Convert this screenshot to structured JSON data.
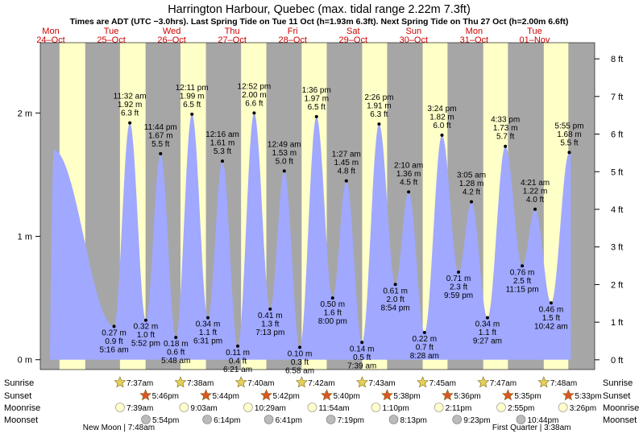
{
  "colors": {
    "night": "#a6a6a6",
    "day": "#ffffc8",
    "tide_fill": "#a0a8ff",
    "header_red": "#cc0000",
    "sun_star": "#e6d056",
    "sunset_star": "#dd5522",
    "moonrise": "#ffffcc",
    "moonset": "#bbbbbb"
  },
  "chart_data": {
    "type": "area",
    "title": "Harrington Harbour, Quebec (max. tidal range 2.22m 7.3ft)",
    "subtitle": "Times are ADT (UTC −3.0hrs). Last Spring Tide on Tue 11 Oct (h=1.93m 6.3ft). Next Spring Tide on Thu 27 Oct (h=2.00m 6.6ft)",
    "x_unit": "hours from 00:00 Mon 24 Oct (ADT)",
    "x_range": [
      0,
      220
    ],
    "ylim_m": [
      -0.08,
      2.57
    ],
    "ylim_ft": [
      -0.26,
      8.43
    ],
    "y_left_ticks": [
      {
        "v": 0,
        "label": "0 m"
      },
      {
        "v": 1,
        "label": "1 m"
      },
      {
        "v": 2,
        "label": "2 m"
      }
    ],
    "y_right_ticks": [
      {
        "v": 0,
        "label": "0 ft"
      },
      {
        "v": 1,
        "label": "1 ft"
      },
      {
        "v": 2,
        "label": "2 ft"
      },
      {
        "v": 3,
        "label": "3 ft"
      },
      {
        "v": 4,
        "label": "4 ft"
      },
      {
        "v": 5,
        "label": "5 ft"
      },
      {
        "v": 6,
        "label": "6 ft"
      },
      {
        "v": 7,
        "label": "7 ft"
      },
      {
        "v": 8,
        "label": "8 ft"
      }
    ],
    "days": [
      {
        "dow": "Mon",
        "date": "24–Oct",
        "t": 0
      },
      {
        "dow": "Tue",
        "date": "25–Oct",
        "t": 24
      },
      {
        "dow": "Wed",
        "date": "26–Oct",
        "t": 48
      },
      {
        "dow": "Thu",
        "date": "27–Oct",
        "t": 72
      },
      {
        "dow": "Fri",
        "date": "28–Oct",
        "t": 96
      },
      {
        "dow": "Sat",
        "date": "29–Oct",
        "t": 120
      },
      {
        "dow": "Sun",
        "date": "30–Oct",
        "t": 144
      },
      {
        "dow": "Mon",
        "date": "31–Oct",
        "t": 168
      },
      {
        "dow": "Tue",
        "date": "01–Nov",
        "t": 192
      }
    ],
    "daylight": [
      {
        "rise": 7.62,
        "set": 17.83
      },
      {
        "rise": 31.62,
        "set": 41.77
      },
      {
        "rise": 55.63,
        "set": 65.73
      },
      {
        "rise": 79.67,
        "set": 89.7
      },
      {
        "rise": 103.7,
        "set": 113.67
      },
      {
        "rise": 127.72,
        "set": 137.63
      },
      {
        "rise": 151.75,
        "set": 161.6
      },
      {
        "rise": 175.78,
        "set": 185.58
      },
      {
        "rise": 199.8,
        "set": 209.55
      }
    ],
    "leading_peak": {
      "t": 5.4,
      "h": 1.7
    },
    "tides": [
      {
        "t": 29.27,
        "h": 0.27,
        "kind": "low",
        "time": "5:16 am",
        "m": "0.27 m",
        "ft": "0.9 ft"
      },
      {
        "t": 35.53,
        "h": 1.92,
        "kind": "high",
        "time": "11:32 am",
        "m": "1.92 m",
        "ft": "6.3 ft"
      },
      {
        "t": 41.87,
        "h": 0.32,
        "kind": "low",
        "time": "5:52 pm",
        "m": "0.32 m",
        "ft": "1.0 ft"
      },
      {
        "t": 47.73,
        "h": 1.67,
        "kind": "high",
        "time": "11:44 pm",
        "m": "1.67 m",
        "ft": "5.5 ft"
      },
      {
        "t": 53.8,
        "h": 0.18,
        "kind": "low",
        "time": "5:48 am",
        "m": "0.18 m",
        "ft": "0.6 ft"
      },
      {
        "t": 60.18,
        "h": 1.99,
        "kind": "high",
        "time": "12:11 pm",
        "m": "1.99 m",
        "ft": "6.5 ft"
      },
      {
        "t": 66.52,
        "h": 0.34,
        "kind": "low",
        "time": "6:31 pm",
        "m": "0.34 m",
        "ft": "1.1 ft"
      },
      {
        "t": 72.27,
        "h": 1.61,
        "kind": "high",
        "time": "12:16 am",
        "m": "1.61 m",
        "ft": "5.3 ft"
      },
      {
        "t": 78.35,
        "h": 0.11,
        "kind": "low",
        "time": "6:21 am",
        "m": "0.11 m",
        "ft": "0.4 ft"
      },
      {
        "t": 84.87,
        "h": 2.0,
        "kind": "high",
        "time": "12:52 pm",
        "m": "2.00 m",
        "ft": "6.6 ft"
      },
      {
        "t": 91.22,
        "h": 0.41,
        "kind": "low",
        "time": "7:13 pm",
        "m": "0.41 m",
        "ft": "1.3 ft"
      },
      {
        "t": 96.82,
        "h": 1.53,
        "kind": "high",
        "time": "12:49 am",
        "m": "1.53 m",
        "ft": "5.0 ft"
      },
      {
        "t": 102.97,
        "h": 0.1,
        "kind": "low",
        "time": "6:58 am",
        "m": "0.10 m",
        "ft": "0.3 ft"
      },
      {
        "t": 109.6,
        "h": 1.97,
        "kind": "high",
        "time": "1:36 pm",
        "m": "1.97 m",
        "ft": "6.5 ft"
      },
      {
        "t": 116.0,
        "h": 0.5,
        "kind": "low",
        "time": "8:00 pm",
        "m": "0.50 m",
        "ft": "1.6 ft"
      },
      {
        "t": 121.45,
        "h": 1.45,
        "kind": "high",
        "time": "1:27 am",
        "m": "1.45 m",
        "ft": "4.8 ft"
      },
      {
        "t": 127.65,
        "h": 0.14,
        "kind": "low",
        "time": "7:39 am",
        "m": "0.14 m",
        "ft": "0.5 ft"
      },
      {
        "t": 134.43,
        "h": 1.91,
        "kind": "high",
        "time": "2:26 pm",
        "m": "1.91 m",
        "ft": "6.3 ft"
      },
      {
        "t": 140.9,
        "h": 0.61,
        "kind": "low",
        "time": "8:54 pm",
        "m": "0.61 m",
        "ft": "2.0 ft"
      },
      {
        "t": 146.17,
        "h": 1.36,
        "kind": "high",
        "time": "2:10 am",
        "m": "1.36 m",
        "ft": "4.5 ft"
      },
      {
        "t": 152.47,
        "h": 0.22,
        "kind": "low",
        "time": "8:28 am",
        "m": "0.22 m",
        "ft": "0.7 ft"
      },
      {
        "t": 159.4,
        "h": 1.82,
        "kind": "high",
        "time": "3:24 pm",
        "m": "1.82 m",
        "ft": "6.0 ft"
      },
      {
        "t": 165.98,
        "h": 0.71,
        "kind": "low",
        "time": "9:59 pm",
        "m": "0.71 m",
        "ft": "2.3 ft"
      },
      {
        "t": 171.08,
        "h": 1.28,
        "kind": "high",
        "time": "3:05 am",
        "m": "1.28 m",
        "ft": "4.2 ft"
      },
      {
        "t": 177.45,
        "h": 0.34,
        "kind": "low",
        "time": "9:27 am",
        "m": "0.34 m",
        "ft": "1.1 ft"
      },
      {
        "t": 184.55,
        "h": 1.73,
        "kind": "high",
        "time": "4:33 pm",
        "m": "1.73 m",
        "ft": "5.7 ft"
      },
      {
        "t": 191.25,
        "h": 0.76,
        "kind": "low",
        "time": "11:15 pm",
        "m": "0.76 m",
        "ft": "2.5 ft"
      },
      {
        "t": 196.35,
        "h": 1.22,
        "kind": "high",
        "time": "4:21 am",
        "m": "1.22 m",
        "ft": "4.0 ft"
      },
      {
        "t": 202.7,
        "h": 0.46,
        "kind": "low",
        "time": "10:42 am",
        "m": "0.46 m",
        "ft": "1.5 ft"
      },
      {
        "t": 209.92,
        "h": 1.68,
        "kind": "high",
        "time": "5:55 pm",
        "m": "1.68 m",
        "ft": "5.5 ft"
      }
    ],
    "astro_labels": [
      "Sunrise",
      "Sunset",
      "Moonrise",
      "Moonset"
    ],
    "sunrise": [
      {
        "t": 31.62,
        "time": "7:37am"
      },
      {
        "t": 55.63,
        "time": "7:38am"
      },
      {
        "t": 79.67,
        "time": "7:40am"
      },
      {
        "t": 103.7,
        "time": "7:42am"
      },
      {
        "t": 127.72,
        "time": "7:43am"
      },
      {
        "t": 151.75,
        "time": "7:45am"
      },
      {
        "t": 175.78,
        "time": "7:47am"
      },
      {
        "t": 199.8,
        "time": "7:48am"
      }
    ],
    "sunset": [
      {
        "t": 41.77,
        "time": "5:46pm"
      },
      {
        "t": 65.73,
        "time": "5:44pm"
      },
      {
        "t": 89.7,
        "time": "5:42pm"
      },
      {
        "t": 113.67,
        "time": "5:40pm"
      },
      {
        "t": 137.63,
        "time": "5:38pm"
      },
      {
        "t": 161.6,
        "time": "5:36pm"
      },
      {
        "t": 185.58,
        "time": "5:35pm"
      },
      {
        "t": 209.55,
        "time": "5:33pm"
      }
    ],
    "moonrise": [
      {
        "t": 31.65,
        "time": "7:39am"
      },
      {
        "t": 57.05,
        "time": "9:03am"
      },
      {
        "t": 82.48,
        "time": "10:29am"
      },
      {
        "t": 107.9,
        "time": "11:54am"
      },
      {
        "t": 133.17,
        "time": "1:10pm"
      },
      {
        "t": 158.18,
        "time": "2:11pm"
      },
      {
        "t": 182.92,
        "time": "2:55pm"
      },
      {
        "t": 207.43,
        "time": "3:26pm"
      }
    ],
    "moonset": [
      {
        "t": 41.9,
        "time": "5:54pm"
      },
      {
        "t": 66.23,
        "time": "6:14pm"
      },
      {
        "t": 90.68,
        "time": "6:41pm"
      },
      {
        "t": 115.32,
        "time": "7:19pm"
      },
      {
        "t": 140.22,
        "time": "8:13pm"
      },
      {
        "t": 165.38,
        "time": "9:23pm"
      },
      {
        "t": 190.73,
        "time": "10:44pm"
      }
    ],
    "moon_phases": [
      {
        "text": "New Moon | 7:48am",
        "t": 31.8
      },
      {
        "text": "First Quarter | 3:38am",
        "t": 195.6
      }
    ]
  }
}
